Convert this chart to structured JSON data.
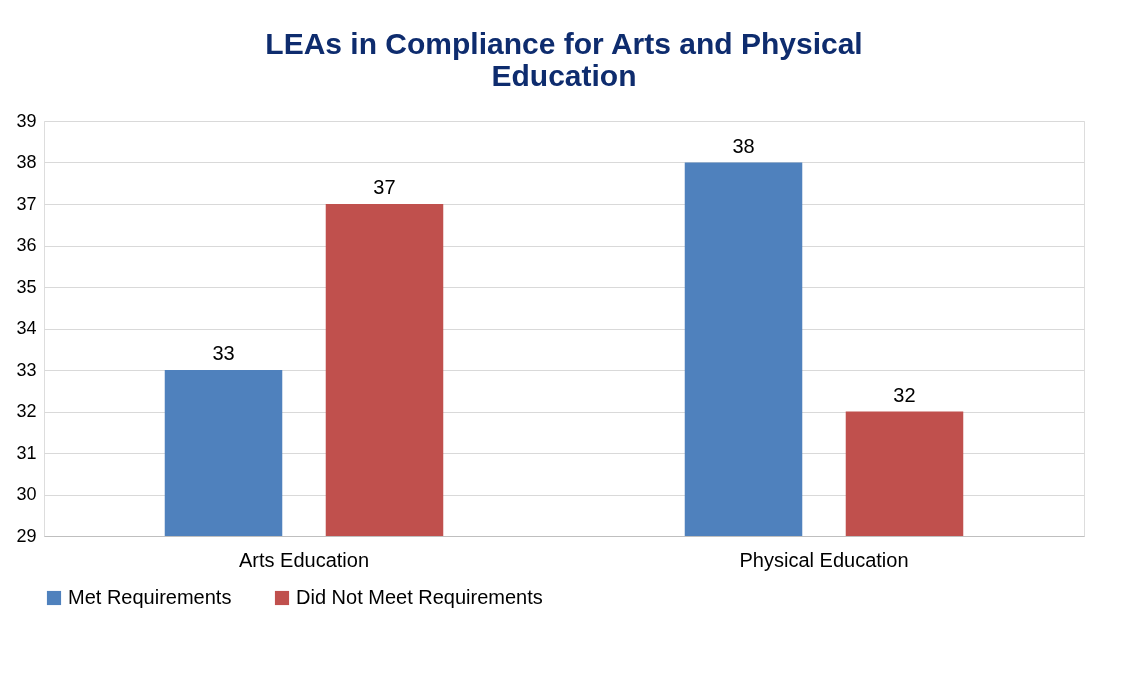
{
  "chart_data": {
    "type": "bar",
    "title": "LEAs in Compliance for Arts and Physical Education",
    "categories": [
      "Arts Education",
      "Physical Education"
    ],
    "series": [
      {
        "name": "Met Requirements",
        "color": "#4f81bd",
        "values": [
          33,
          38
        ]
      },
      {
        "name": "Did Not Meet Requirements",
        "color": "#c0504d",
        "values": [
          37,
          32
        ]
      }
    ],
    "ylim": [
      29,
      39
    ],
    "yticks": [
      29,
      30,
      31,
      32,
      33,
      34,
      35,
      36,
      37,
      38,
      39
    ],
    "grid": "y",
    "legend": "bottom",
    "data_labels": true
  }
}
